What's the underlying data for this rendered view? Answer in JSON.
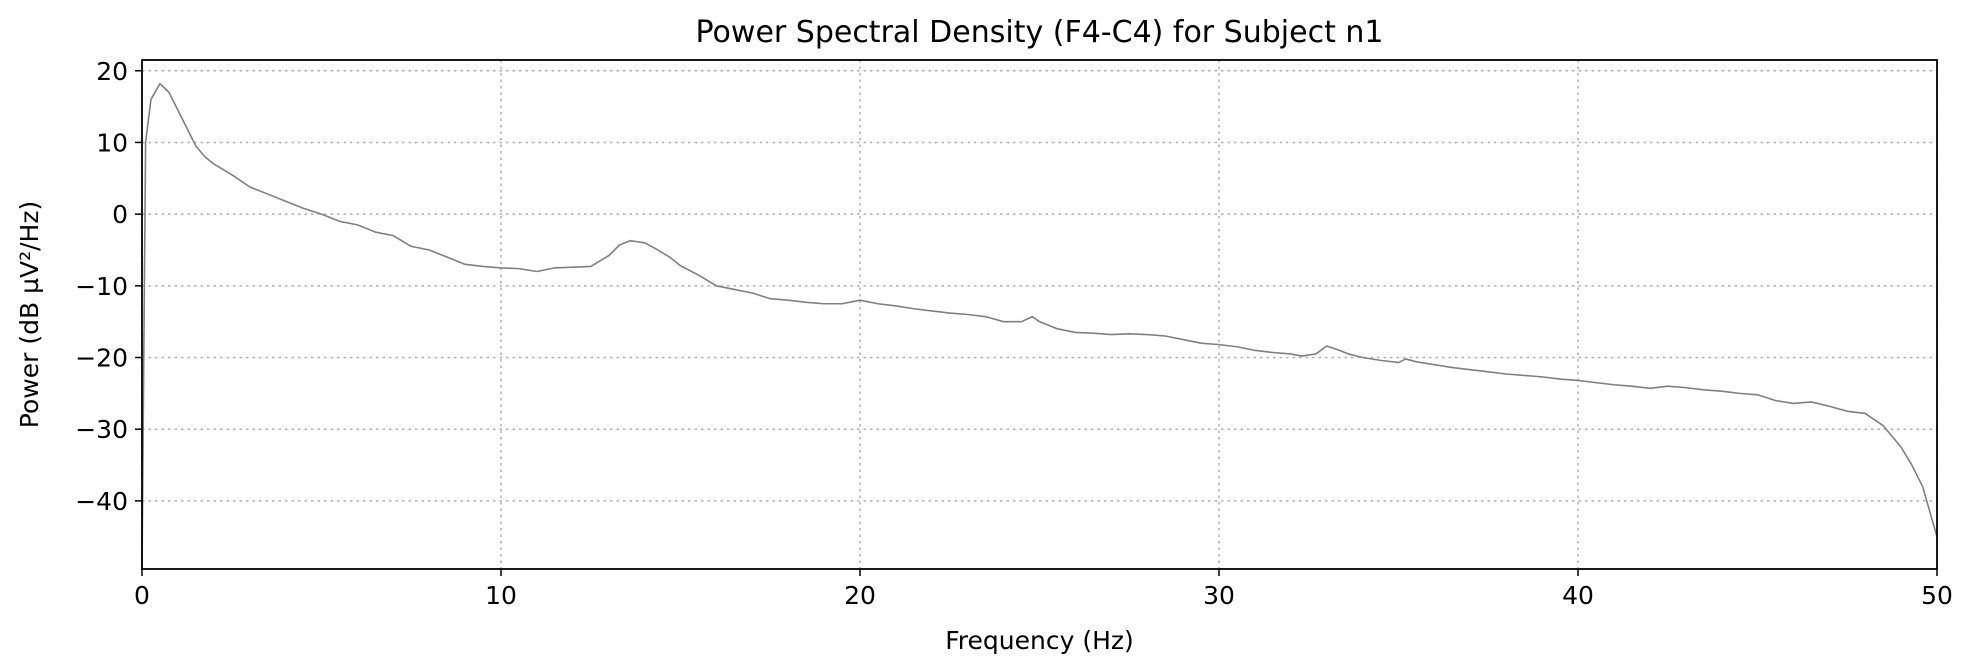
{
  "chart_data": {
    "type": "line",
    "title": "Power Spectral Density (F4-C4) for Subject n1",
    "xlabel": "Frequency (Hz)",
    "ylabel": "Power (dB µV²/Hz)",
    "xlim": [
      0,
      50
    ],
    "ylim": [
      -49.5,
      21.5
    ],
    "grid": true,
    "x_ticks": [
      0,
      10,
      20,
      30,
      40,
      50
    ],
    "x_tick_labels": [
      "0",
      "10",
      "20",
      "30",
      "40",
      "50"
    ],
    "y_ticks": [
      20,
      10,
      0,
      -10,
      -20,
      -30,
      -40
    ],
    "y_tick_labels": [
      "20",
      "10",
      "0",
      "−10",
      "−20",
      "−30",
      "−40"
    ],
    "series": [
      {
        "name": "F4-C4",
        "color": "#808080",
        "x": [
          0,
          0.1,
          0.25,
          0.5,
          0.75,
          1.0,
          1.25,
          1.5,
          1.75,
          2.0,
          2.5,
          3.0,
          3.5,
          4.0,
          4.5,
          5.0,
          5.5,
          6.0,
          6.5,
          7.0,
          7.5,
          8.0,
          8.5,
          9.0,
          9.5,
          10.0,
          10.5,
          11.0,
          11.5,
          12.0,
          12.5,
          13.0,
          13.3,
          13.6,
          14.0,
          14.3,
          14.7,
          15.0,
          15.5,
          16.0,
          16.5,
          17.0,
          17.5,
          18.0,
          18.5,
          19.0,
          19.5,
          20.0,
          20.5,
          21.0,
          21.5,
          22.0,
          22.5,
          23.0,
          23.5,
          24.0,
          24.5,
          24.8,
          25.0,
          25.5,
          26.0,
          26.5,
          27.0,
          27.5,
          28.0,
          28.5,
          29.0,
          29.5,
          30.0,
          30.5,
          31.0,
          31.5,
          32.0,
          32.3,
          32.7,
          33.0,
          33.3,
          33.6,
          34.0,
          34.5,
          35.0,
          35.2,
          35.5,
          36.0,
          36.5,
          37.0,
          37.5,
          38.0,
          38.5,
          39.0,
          39.5,
          40.0,
          40.5,
          41.0,
          41.5,
          42.0,
          42.5,
          43.0,
          43.5,
          44.0,
          44.5,
          45.0,
          45.5,
          46.0,
          46.5,
          47.0,
          47.5,
          48.0,
          48.5,
          49.0,
          49.3,
          49.6,
          50.0
        ],
        "y": [
          -49.5,
          10.0,
          16.0,
          18.2,
          17.0,
          14.5,
          12.0,
          9.5,
          8.0,
          7.0,
          5.5,
          3.8,
          2.8,
          1.8,
          0.8,
          0.0,
          -1.0,
          -1.5,
          -2.5,
          -3.0,
          -4.5,
          -5.0,
          -6.0,
          -7.0,
          -7.3,
          -7.5,
          -7.6,
          -8.0,
          -7.5,
          -7.4,
          -7.3,
          -5.8,
          -4.3,
          -3.7,
          -4.0,
          -4.8,
          -6.0,
          -7.2,
          -8.5,
          -10.0,
          -10.5,
          -11.0,
          -11.8,
          -12.0,
          -12.3,
          -12.5,
          -12.5,
          -12.0,
          -12.5,
          -12.8,
          -13.2,
          -13.5,
          -13.8,
          -14.0,
          -14.3,
          -15.0,
          -15.0,
          -14.3,
          -15.0,
          -16.0,
          -16.5,
          -16.6,
          -16.8,
          -16.7,
          -16.8,
          -17.0,
          -17.5,
          -18.0,
          -18.2,
          -18.5,
          -19.0,
          -19.3,
          -19.5,
          -19.8,
          -19.5,
          -18.4,
          -18.9,
          -19.5,
          -20.0,
          -20.4,
          -20.7,
          -20.2,
          -20.6,
          -21.0,
          -21.4,
          -21.7,
          -22.0,
          -22.3,
          -22.5,
          -22.7,
          -23.0,
          -23.2,
          -23.5,
          -23.8,
          -24.0,
          -24.3,
          -24.0,
          -24.2,
          -24.5,
          -24.7,
          -25.0,
          -25.2,
          -26.0,
          -26.4,
          -26.2,
          -26.8,
          -27.5,
          -27.8,
          -29.5,
          -32.5,
          -35.0,
          -38.0,
          -45.0
        ]
      }
    ]
  }
}
